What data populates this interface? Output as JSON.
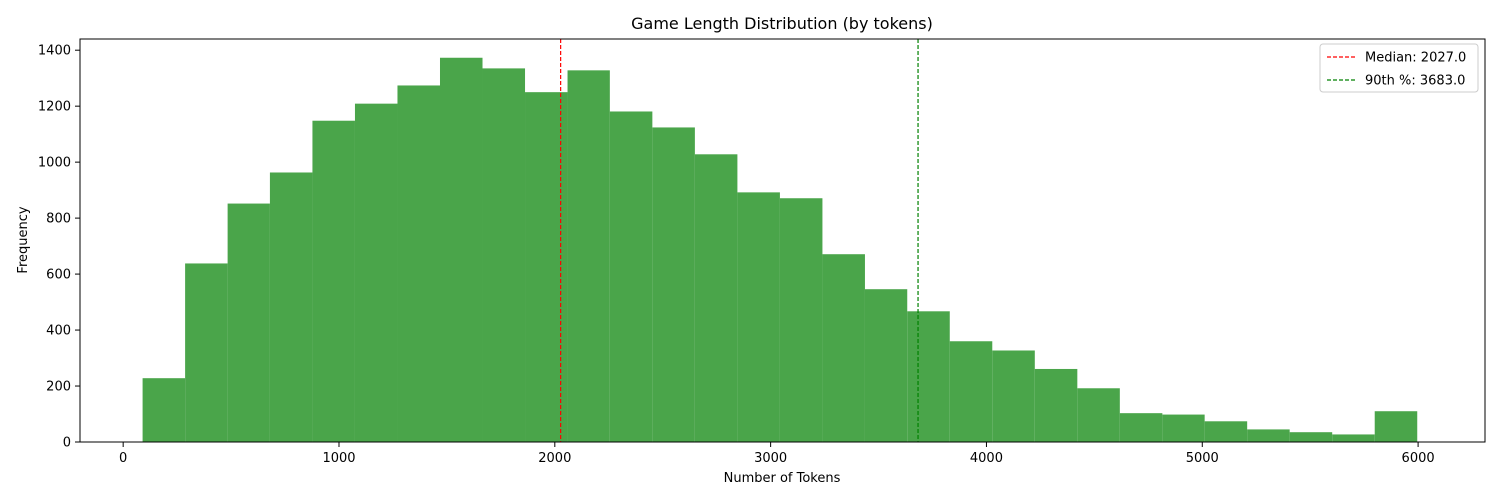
{
  "chart_data": {
    "type": "bar",
    "title": "Game Length Distribution (by tokens)",
    "xlabel": "Number of Tokens",
    "ylabel": "Frequency",
    "xlim": [
      -200,
      6310
    ],
    "ylim": [
      0,
      1440
    ],
    "xticks": [
      0,
      1000,
      2000,
      3000,
      4000,
      5000,
      6000
    ],
    "yticks": [
      0,
      200,
      400,
      600,
      800,
      1000,
      1200,
      1400
    ],
    "bar_color": "#4aa54a",
    "bins": [
      {
        "x0": 90,
        "x1": 287,
        "count": 228
      },
      {
        "x0": 287,
        "x1": 484,
        "count": 638
      },
      {
        "x0": 484,
        "x1": 680,
        "count": 852
      },
      {
        "x0": 680,
        "x1": 877,
        "count": 963
      },
      {
        "x0": 877,
        "x1": 1074,
        "count": 1148
      },
      {
        "x0": 1074,
        "x1": 1271,
        "count": 1209
      },
      {
        "x0": 1271,
        "x1": 1468,
        "count": 1274
      },
      {
        "x0": 1468,
        "x1": 1665,
        "count": 1373
      },
      {
        "x0": 1665,
        "x1": 1862,
        "count": 1335
      },
      {
        "x0": 1862,
        "x1": 2059,
        "count": 1250
      },
      {
        "x0": 2059,
        "x1": 2255,
        "count": 1328
      },
      {
        "x0": 2255,
        "x1": 2452,
        "count": 1181
      },
      {
        "x0": 2452,
        "x1": 2649,
        "count": 1124
      },
      {
        "x0": 2649,
        "x1": 2846,
        "count": 1028
      },
      {
        "x0": 2846,
        "x1": 3043,
        "count": 892
      },
      {
        "x0": 3043,
        "x1": 3240,
        "count": 871
      },
      {
        "x0": 3240,
        "x1": 3437,
        "count": 671
      },
      {
        "x0": 3437,
        "x1": 3633,
        "count": 546
      },
      {
        "x0": 3633,
        "x1": 3830,
        "count": 467
      },
      {
        "x0": 3830,
        "x1": 4027,
        "count": 360
      },
      {
        "x0": 4027,
        "x1": 4224,
        "count": 327
      },
      {
        "x0": 4224,
        "x1": 4421,
        "count": 261
      },
      {
        "x0": 4421,
        "x1": 4618,
        "count": 192
      },
      {
        "x0": 4618,
        "x1": 4815,
        "count": 103
      },
      {
        "x0": 4815,
        "x1": 5011,
        "count": 98
      },
      {
        "x0": 5011,
        "x1": 5208,
        "count": 74
      },
      {
        "x0": 5208,
        "x1": 5405,
        "count": 45
      },
      {
        "x0": 5405,
        "x1": 5602,
        "count": 35
      },
      {
        "x0": 5602,
        "x1": 5799,
        "count": 27
      },
      {
        "x0": 5799,
        "x1": 5996,
        "count": 110
      }
    ],
    "reference_lines": [
      {
        "label": "Median: 2027.0",
        "x": 2027,
        "color": "#ff0000"
      },
      {
        "label": "90th %: 3683.0",
        "x": 3683,
        "color": "#008000"
      }
    ],
    "legend_position": "top-right",
    "grid": false
  }
}
